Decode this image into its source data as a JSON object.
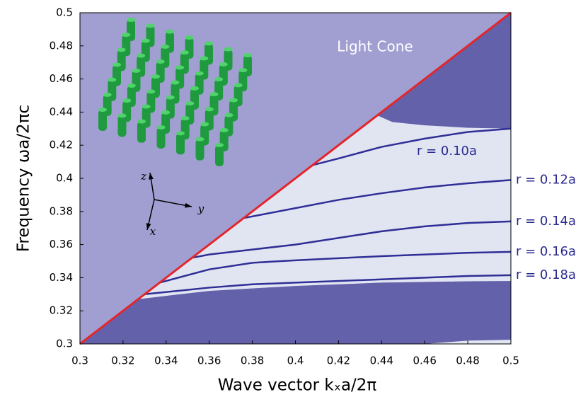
{
  "chart_data": {
    "type": "line",
    "xlabel": "Wave vector  kₓa/2π",
    "ylabel": "Frequency  ωa/2πc",
    "annotation": "Light Cone",
    "inset_axes": [
      "z",
      "y",
      "x"
    ],
    "xlim": [
      0.3,
      0.5
    ],
    "ylim": [
      0.3,
      0.5
    ],
    "xticks": [
      0.3,
      0.32,
      0.34,
      0.36,
      0.38,
      0.4,
      0.42,
      0.44,
      0.46,
      0.48,
      0.5
    ],
    "yticks": [
      0.3,
      0.32,
      0.34,
      0.36,
      0.38,
      0.4,
      0.42,
      0.44,
      0.46,
      0.48,
      0.5
    ],
    "background": "#a19fd1",
    "areas": [
      {
        "color": "#6461ab",
        "x": [
          0.438,
          0.445,
          0.46,
          0.48,
          0.5,
          0.5
        ],
        "y": [
          0.438,
          0.434,
          0.432,
          0.4305,
          0.43,
          0.5
        ]
      },
      {
        "color": "#e1e5f2",
        "x": [
          0.327,
          0.438,
          0.445,
          0.46,
          0.48,
          0.5,
          0.5,
          0.48,
          0.44,
          0.4,
          0.36,
          0.34,
          0.327
        ],
        "y": [
          0.327,
          0.438,
          0.434,
          0.432,
          0.4305,
          0.43,
          0.338,
          0.3378,
          0.337,
          0.335,
          0.332,
          0.329,
          0.327
        ]
      },
      {
        "color": "#6461ab",
        "x": [
          0.3,
          0.327,
          0.34,
          0.36,
          0.4,
          0.44,
          0.48,
          0.5,
          0.5,
          0.48,
          0.46
        ],
        "y": [
          0.3,
          0.327,
          0.329,
          0.332,
          0.335,
          0.337,
          0.3378,
          0.338,
          0.3025,
          0.302,
          0.3
        ]
      },
      {
        "color": "#e1e5f2",
        "x": [
          0.46,
          0.48,
          0.5,
          0.5
        ],
        "y": [
          0.3,
          0.302,
          0.3025,
          0.3
        ]
      }
    ],
    "light_line": {
      "color": "#e3262b",
      "x": [
        0.3,
        0.5
      ],
      "y": [
        0.3,
        0.5
      ]
    },
    "series": [
      {
        "name": "r = 0.10a",
        "color": "#2e2e96",
        "x": [
          0.408,
          0.42,
          0.44,
          0.46,
          0.48,
          0.5
        ],
        "values": [
          0.408,
          0.412,
          0.419,
          0.424,
          0.428,
          0.43
        ]
      },
      {
        "name": "r = 0.12a",
        "color": "#2e2e96",
        "x": [
          0.376,
          0.38,
          0.4,
          0.42,
          0.44,
          0.46,
          0.48,
          0.5
        ],
        "values": [
          0.376,
          0.377,
          0.382,
          0.387,
          0.391,
          0.3945,
          0.397,
          0.399
        ]
      },
      {
        "name": "r = 0.14a",
        "color": "#2e2e96",
        "x": [
          0.352,
          0.36,
          0.38,
          0.4,
          0.42,
          0.44,
          0.46,
          0.48,
          0.5
        ],
        "values": [
          0.352,
          0.354,
          0.357,
          0.36,
          0.364,
          0.368,
          0.371,
          0.373,
          0.374
        ]
      },
      {
        "name": "r = 0.16a",
        "color": "#2e2e96",
        "x": [
          0.337,
          0.36,
          0.38,
          0.4,
          0.44,
          0.48,
          0.5
        ],
        "values": [
          0.337,
          0.345,
          0.349,
          0.3505,
          0.353,
          0.355,
          0.3556
        ]
      },
      {
        "name": "r = 0.18a",
        "color": "#2e2e96",
        "x": [
          0.33,
          0.36,
          0.38,
          0.4,
          0.44,
          0.48,
          0.5
        ],
        "values": [
          0.33,
          0.334,
          0.336,
          0.337,
          0.339,
          0.341,
          0.3415
        ]
      }
    ]
  }
}
